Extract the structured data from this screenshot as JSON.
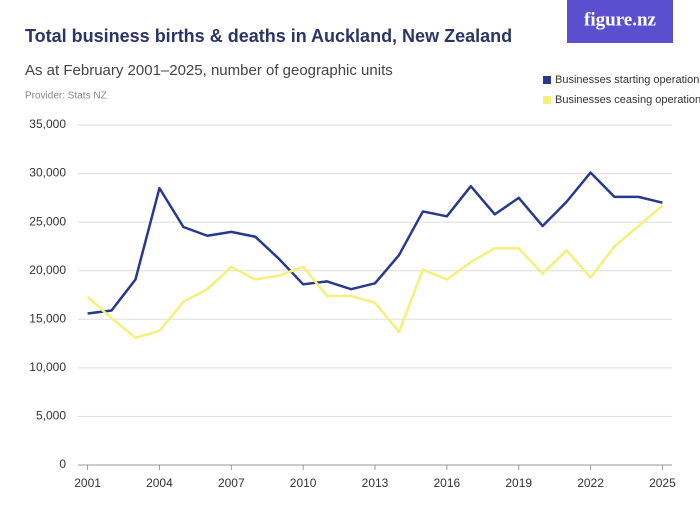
{
  "chart_data": {
    "type": "line",
    "title": "Total business births & deaths in Auckland, New Zealand",
    "subtitle": "As at February 2001–2025, number of geographic units",
    "provider": "Provider: Stats NZ",
    "logo": "figure.nz",
    "x": [
      2001,
      2002,
      2003,
      2004,
      2005,
      2006,
      2007,
      2008,
      2009,
      2010,
      2011,
      2012,
      2013,
      2014,
      2015,
      2016,
      2017,
      2018,
      2019,
      2020,
      2021,
      2022,
      2023,
      2024,
      2025
    ],
    "series": [
      {
        "name": "Businesses starting operation",
        "color": "#27398f",
        "values": [
          15600,
          15900,
          19100,
          28500,
          24500,
          23600,
          24000,
          23500,
          21200,
          18600,
          18900,
          18100,
          18700,
          21600,
          26100,
          25600,
          28700,
          25800,
          27500,
          24600,
          27100,
          30100,
          27600,
          27600,
          27000
        ]
      },
      {
        "name": "Businesses ceasing operation",
        "color": "#f5f07a",
        "values": [
          17300,
          15100,
          13100,
          13800,
          16800,
          18100,
          20400,
          19100,
          19500,
          20400,
          17400,
          17400,
          16700,
          13700,
          20100,
          19100,
          20900,
          22300,
          22300,
          19700,
          22100,
          19300,
          22500,
          24600,
          26700
        ]
      }
    ],
    "xlim": [
      2000.6,
      2025.4
    ],
    "xticks": [
      2001,
      2004,
      2007,
      2010,
      2013,
      2016,
      2019,
      2022,
      2025
    ],
    "ylim": [
      0,
      35000
    ],
    "yticks": [
      0,
      {
        "value": 5000,
        "label": "5,000"
      },
      {
        "value": 10000,
        "label": "10,000"
      },
      {
        "value": 15000,
        "label": "15,000"
      },
      {
        "value": 20000,
        "label": "20,000"
      },
      {
        "value": 25000,
        "label": "25,000"
      },
      {
        "value": 30000,
        "label": "30,000"
      },
      {
        "value": 35000,
        "label": "35,000"
      }
    ],
    "grid": true
  }
}
